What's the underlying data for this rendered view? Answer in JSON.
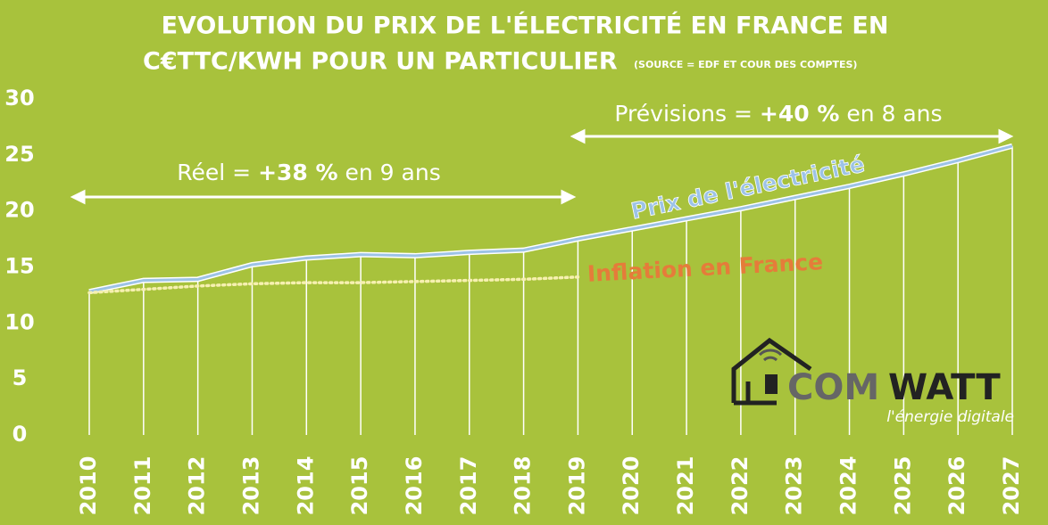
{
  "chart_data": {
    "type": "line",
    "title": [
      "EVOLUTION DU PRIX DE L'ÉLECTRICITÉ EN FRANCE  EN",
      "C€TTC/KWH POUR UN PARTICULIER"
    ],
    "subtitle": "(SOURCE = EDF ET COUR DES COMPTES)",
    "categories": [
      "2010",
      "2011",
      "2012",
      "2013",
      "2014",
      "2015",
      "2016",
      "2017",
      "2018",
      "2019",
      "2020",
      "2021",
      "2022",
      "2023",
      "2024",
      "2025",
      "2026",
      "2027"
    ],
    "series": [
      {
        "name": "Prix de l'électricité",
        "color": "#9dc3e6",
        "values": [
          12.8,
          13.8,
          13.9,
          15.2,
          15.8,
          16.1,
          16.0,
          16.3,
          16.5,
          17.5,
          18.4,
          19.3,
          20.2,
          21.2,
          22.2,
          23.3,
          24.5,
          25.8
        ]
      },
      {
        "name": "Inflation en France",
        "color": "#e57c3a",
        "values": [
          12.7,
          13.0,
          13.3,
          13.5,
          13.6,
          13.6,
          13.7,
          13.8,
          13.9,
          14.1,
          null,
          null,
          null,
          null,
          null,
          null,
          null,
          null
        ]
      }
    ],
    "ylim": [
      0,
      30
    ],
    "yticks": [
      0,
      5,
      10,
      15,
      20,
      25,
      30
    ],
    "annotations": [
      [
        "Réel = ",
        "+38 %",
        " en 9 ans"
      ],
      [
        "Prévisions = ",
        "+40 %",
        " en 8 ans"
      ]
    ],
    "logo": {
      "brand": [
        "COM",
        "WATT"
      ],
      "tagline": "l'énergie digitale"
    }
  }
}
